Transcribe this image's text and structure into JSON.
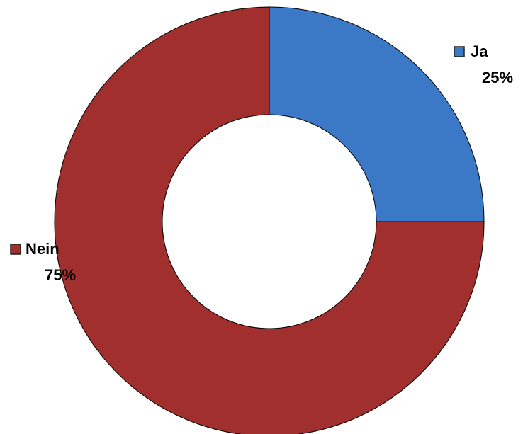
{
  "chart_data": {
    "type": "donut",
    "categories": [
      "Ja",
      "Nein"
    ],
    "values": [
      25,
      75
    ],
    "value_labels": [
      "25%",
      "75%"
    ],
    "colors": [
      "#3b78c6",
      "#a02f2d"
    ]
  }
}
